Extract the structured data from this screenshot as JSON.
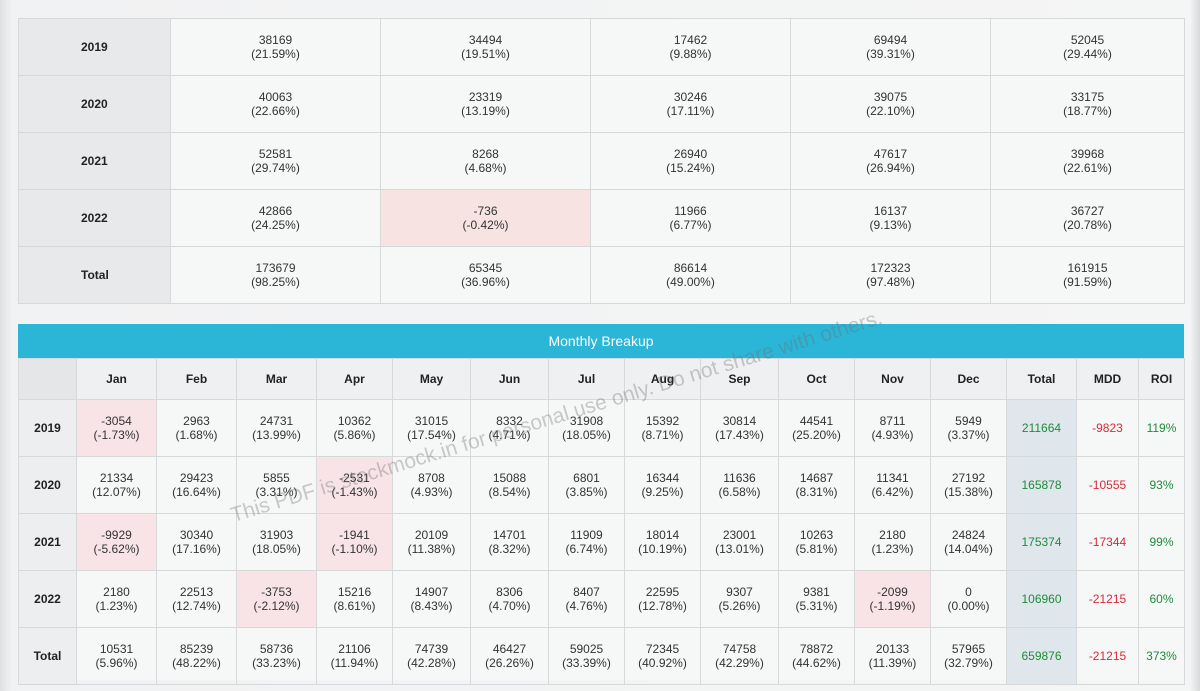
{
  "top_table": {
    "rows": [
      {
        "label": "2019",
        "cells": [
          {
            "value": "38169",
            "pct": "(21.59%)",
            "neg": false
          },
          {
            "value": "34494",
            "pct": "(19.51%)",
            "neg": false
          },
          {
            "value": "17462",
            "pct": "(9.88%)",
            "neg": false
          },
          {
            "value": "69494",
            "pct": "(39.31%)",
            "neg": false
          },
          {
            "value": "52045",
            "pct": "(29.44%)",
            "neg": false
          }
        ]
      },
      {
        "label": "2020",
        "cells": [
          {
            "value": "40063",
            "pct": "(22.66%)",
            "neg": false
          },
          {
            "value": "23319",
            "pct": "(13.19%)",
            "neg": false
          },
          {
            "value": "30246",
            "pct": "(17.11%)",
            "neg": false
          },
          {
            "value": "39075",
            "pct": "(22.10%)",
            "neg": false
          },
          {
            "value": "33175",
            "pct": "(18.77%)",
            "neg": false
          }
        ]
      },
      {
        "label": "2021",
        "cells": [
          {
            "value": "52581",
            "pct": "(29.74%)",
            "neg": false
          },
          {
            "value": "8268",
            "pct": "(4.68%)",
            "neg": false
          },
          {
            "value": "26940",
            "pct": "(15.24%)",
            "neg": false
          },
          {
            "value": "47617",
            "pct": "(26.94%)",
            "neg": false
          },
          {
            "value": "39968",
            "pct": "(22.61%)",
            "neg": false
          }
        ]
      },
      {
        "label": "2022",
        "cells": [
          {
            "value": "42866",
            "pct": "(24.25%)",
            "neg": false
          },
          {
            "value": "-736",
            "pct": "(-0.42%)",
            "neg": true
          },
          {
            "value": "11966",
            "pct": "(6.77%)",
            "neg": false
          },
          {
            "value": "16137",
            "pct": "(9.13%)",
            "neg": false
          },
          {
            "value": "36727",
            "pct": "(20.78%)",
            "neg": false
          }
        ]
      },
      {
        "label": "Total",
        "cells": [
          {
            "value": "173679",
            "pct": "(98.25%)",
            "neg": false
          },
          {
            "value": "65345",
            "pct": "(36.96%)",
            "neg": false
          },
          {
            "value": "86614",
            "pct": "(49.00%)",
            "neg": false
          },
          {
            "value": "172323",
            "pct": "(97.48%)",
            "neg": false
          },
          {
            "value": "161915",
            "pct": "(91.59%)",
            "neg": false
          }
        ]
      }
    ]
  },
  "monthly": {
    "title": "Monthly Breakup",
    "headers": [
      "Jan",
      "Feb",
      "Mar",
      "Apr",
      "May",
      "Jun",
      "Jul",
      "Aug",
      "Sep",
      "Oct",
      "Nov",
      "Dec",
      "Total",
      "MDD",
      "ROI"
    ],
    "rows": [
      {
        "label": "2019",
        "cells": [
          {
            "value": "-3054",
            "pct": "(-1.73%)",
            "neg": true
          },
          {
            "value": "2963",
            "pct": "(1.68%)",
            "neg": false
          },
          {
            "value": "24731",
            "pct": "(13.99%)",
            "neg": false
          },
          {
            "value": "10362",
            "pct": "(5.86%)",
            "neg": false
          },
          {
            "value": "31015",
            "pct": "(17.54%)",
            "neg": false
          },
          {
            "value": "8332",
            "pct": "(4.71%)",
            "neg": false
          },
          {
            "value": "31908",
            "pct": "(18.05%)",
            "neg": false
          },
          {
            "value": "15392",
            "pct": "(8.71%)",
            "neg": false
          },
          {
            "value": "30814",
            "pct": "(17.43%)",
            "neg": false
          },
          {
            "value": "44541",
            "pct": "(25.20%)",
            "neg": false
          },
          {
            "value": "8711",
            "pct": "(4.93%)",
            "neg": false
          },
          {
            "value": "5949",
            "pct": "(3.37%)",
            "neg": false
          }
        ],
        "total": "211664",
        "mdd": "-9823",
        "roi": "119%"
      },
      {
        "label": "2020",
        "cells": [
          {
            "value": "21334",
            "pct": "(12.07%)",
            "neg": false
          },
          {
            "value": "29423",
            "pct": "(16.64%)",
            "neg": false
          },
          {
            "value": "5855",
            "pct": "(3.31%)",
            "neg": false
          },
          {
            "value": "-2531",
            "pct": "(-1.43%)",
            "neg": true
          },
          {
            "value": "8708",
            "pct": "(4.93%)",
            "neg": false
          },
          {
            "value": "15088",
            "pct": "(8.54%)",
            "neg": false
          },
          {
            "value": "6801",
            "pct": "(3.85%)",
            "neg": false
          },
          {
            "value": "16344",
            "pct": "(9.25%)",
            "neg": false
          },
          {
            "value": "11636",
            "pct": "(6.58%)",
            "neg": false
          },
          {
            "value": "14687",
            "pct": "(8.31%)",
            "neg": false
          },
          {
            "value": "11341",
            "pct": "(6.42%)",
            "neg": false
          },
          {
            "value": "27192",
            "pct": "(15.38%)",
            "neg": false
          }
        ],
        "total": "165878",
        "mdd": "-10555",
        "roi": "93%"
      },
      {
        "label": "2021",
        "cells": [
          {
            "value": "-9929",
            "pct": "(-5.62%)",
            "neg": true
          },
          {
            "value": "30340",
            "pct": "(17.16%)",
            "neg": false
          },
          {
            "value": "31903",
            "pct": "(18.05%)",
            "neg": false
          },
          {
            "value": "-1941",
            "pct": "(-1.10%)",
            "neg": true
          },
          {
            "value": "20109",
            "pct": "(11.38%)",
            "neg": false
          },
          {
            "value": "14701",
            "pct": "(8.32%)",
            "neg": false
          },
          {
            "value": "11909",
            "pct": "(6.74%)",
            "neg": false
          },
          {
            "value": "18014",
            "pct": "(10.19%)",
            "neg": false
          },
          {
            "value": "23001",
            "pct": "(13.01%)",
            "neg": false
          },
          {
            "value": "10263",
            "pct": "(5.81%)",
            "neg": false
          },
          {
            "value": "2180",
            "pct": "(1.23%)",
            "neg": false
          },
          {
            "value": "24824",
            "pct": "(14.04%)",
            "neg": false
          }
        ],
        "total": "175374",
        "mdd": "-17344",
        "roi": "99%"
      },
      {
        "label": "2022",
        "cells": [
          {
            "value": "2180",
            "pct": "(1.23%)",
            "neg": false
          },
          {
            "value": "22513",
            "pct": "(12.74%)",
            "neg": false
          },
          {
            "value": "-3753",
            "pct": "(-2.12%)",
            "neg": true
          },
          {
            "value": "15216",
            "pct": "(8.61%)",
            "neg": false
          },
          {
            "value": "14907",
            "pct": "(8.43%)",
            "neg": false
          },
          {
            "value": "8306",
            "pct": "(4.70%)",
            "neg": false
          },
          {
            "value": "8407",
            "pct": "(4.76%)",
            "neg": false
          },
          {
            "value": "22595",
            "pct": "(12.78%)",
            "neg": false
          },
          {
            "value": "9307",
            "pct": "(5.26%)",
            "neg": false
          },
          {
            "value": "9381",
            "pct": "(5.31%)",
            "neg": false
          },
          {
            "value": "-2099",
            "pct": "(-1.19%)",
            "neg": true
          },
          {
            "value": "0",
            "pct": "(0.00%)",
            "neg": false
          }
        ],
        "total": "106960",
        "mdd": "-21215",
        "roi": "60%"
      },
      {
        "label": "Total",
        "cells": [
          {
            "value": "10531",
            "pct": "(5.96%)",
            "neg": false
          },
          {
            "value": "85239",
            "pct": "(48.22%)",
            "neg": false
          },
          {
            "value": "58736",
            "pct": "(33.23%)",
            "neg": false
          },
          {
            "value": "21106",
            "pct": "(11.94%)",
            "neg": false
          },
          {
            "value": "74739",
            "pct": "(42.28%)",
            "neg": false
          },
          {
            "value": "46427",
            "pct": "(26.26%)",
            "neg": false
          },
          {
            "value": "59025",
            "pct": "(33.39%)",
            "neg": false
          },
          {
            "value": "72345",
            "pct": "(40.92%)",
            "neg": false
          },
          {
            "value": "74758",
            "pct": "(42.29%)",
            "neg": false
          },
          {
            "value": "78872",
            "pct": "(44.62%)",
            "neg": false
          },
          {
            "value": "20133",
            "pct": "(11.39%)",
            "neg": false
          },
          {
            "value": "57965",
            "pct": "(32.79%)",
            "neg": false
          }
        ],
        "total": "659876",
        "mdd": "-21215",
        "roi": "373%"
      }
    ]
  },
  "watermark": "This PDF is stockmock.in for personal use only. Do not share with others.",
  "colors": {
    "banner": "#2bb6d8",
    "positive": "#1f8a3b",
    "negative": "#d62b3a",
    "negative_cell": "#f8e4e6"
  }
}
